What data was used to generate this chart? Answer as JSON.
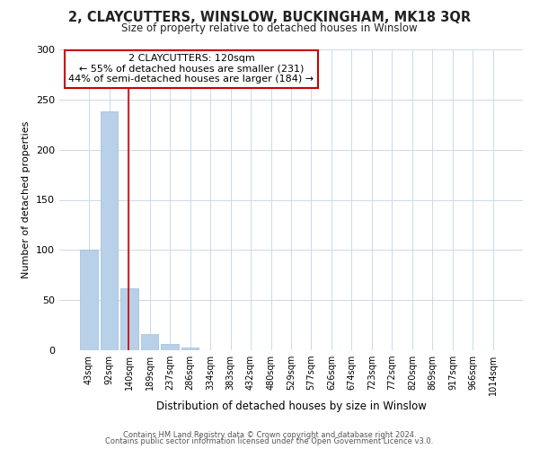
{
  "title1": "2, CLAYCUTTERS, WINSLOW, BUCKINGHAM, MK18 3QR",
  "title2": "Size of property relative to detached houses in Winslow",
  "xlabel": "Distribution of detached houses by size in Winslow",
  "ylabel": "Number of detached properties",
  "bar_labels": [
    "43sqm",
    "92sqm",
    "140sqm",
    "189sqm",
    "237sqm",
    "286sqm",
    "334sqm",
    "383sqm",
    "432sqm",
    "480sqm",
    "529sqm",
    "577sqm",
    "626sqm",
    "674sqm",
    "723sqm",
    "772sqm",
    "820sqm",
    "869sqm",
    "917sqm",
    "966sqm",
    "1014sqm"
  ],
  "bar_values": [
    100,
    238,
    62,
    16,
    6,
    3,
    0,
    0,
    0,
    0,
    0,
    0,
    0,
    0,
    0,
    0,
    0,
    0,
    0,
    0,
    0
  ],
  "bar_color": "#b8d0e8",
  "bar_edge_color": "#a0bcd8",
  "property_line_x": 1.97,
  "property_line_color": "#cc0000",
  "ylim": [
    0,
    300
  ],
  "yticks": [
    0,
    50,
    100,
    150,
    200,
    250,
    300
  ],
  "annotation_text": "2 CLAYCUTTERS: 120sqm\n← 55% of detached houses are smaller (231)\n44% of semi-detached houses are larger (184) →",
  "annotation_box_color": "#ffffff",
  "annotation_box_edge": "#cc0000",
  "footer1": "Contains HM Land Registry data © Crown copyright and database right 2024.",
  "footer2": "Contains public sector information licensed under the Open Government Licence v3.0.",
  "background_color": "#ffffff",
  "grid_color": "#ccd9e8",
  "title1_fontsize": 10.5,
  "title2_fontsize": 8.5,
  "xlabel_fontsize": 8.5,
  "ylabel_fontsize": 8.0,
  "tick_fontsize": 7.0,
  "ytick_fontsize": 8.0,
  "ann_fontsize": 8.0,
  "footer_fontsize": 6.0
}
